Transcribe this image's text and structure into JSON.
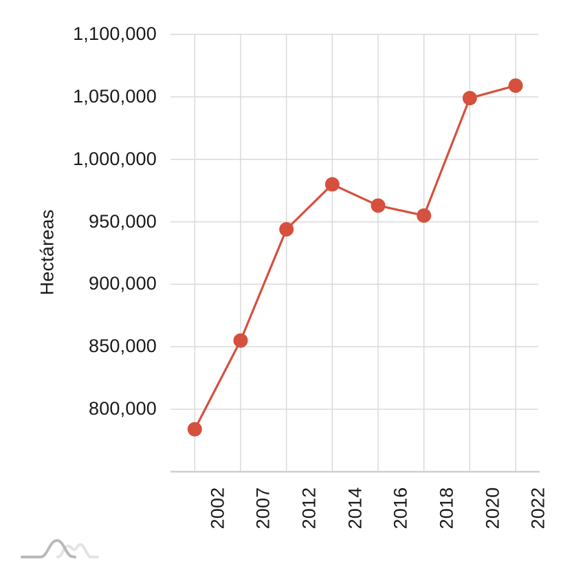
{
  "page": {
    "background": "#ffffff"
  },
  "chart_data": {
    "type": "line",
    "title": "",
    "xlabel": "",
    "ylabel": "Hectáreas",
    "categories": [
      "2002",
      "2007",
      "2012",
      "2014",
      "2016",
      "2018",
      "2020",
      "2022"
    ],
    "series": [
      {
        "name": "Hectáreas",
        "values": [
          784000,
          855000,
          944000,
          980000,
          963000,
          955000,
          1049000,
          1059000
        ]
      }
    ],
    "ylim": [
      750000,
      1100000
    ],
    "yticks": [
      {
        "value": 1100000,
        "label": "1,100,000"
      },
      {
        "value": 1050000,
        "label": "1,050,000"
      },
      {
        "value": 1000000,
        "label": "1,000,000"
      },
      {
        "value": 950000,
        "label": "950,000"
      },
      {
        "value": 900000,
        "label": "900,000"
      },
      {
        "value": 850000,
        "label": "850,000"
      },
      {
        "value": 800000,
        "label": "800,000"
      }
    ],
    "grid": "both",
    "legend": "none",
    "marker": "circle",
    "colors": {
      "series": "#d5503d",
      "gridline": "#d9d9d9",
      "axis_line": "#cfcfcf",
      "text": "#1a1a1a"
    }
  },
  "footer": {
    "logo_name": "distribution-curves-logo",
    "logo_colors": {
      "dark_curve": "#b9b9b9",
      "light_curve": "#e3e3e3"
    }
  }
}
